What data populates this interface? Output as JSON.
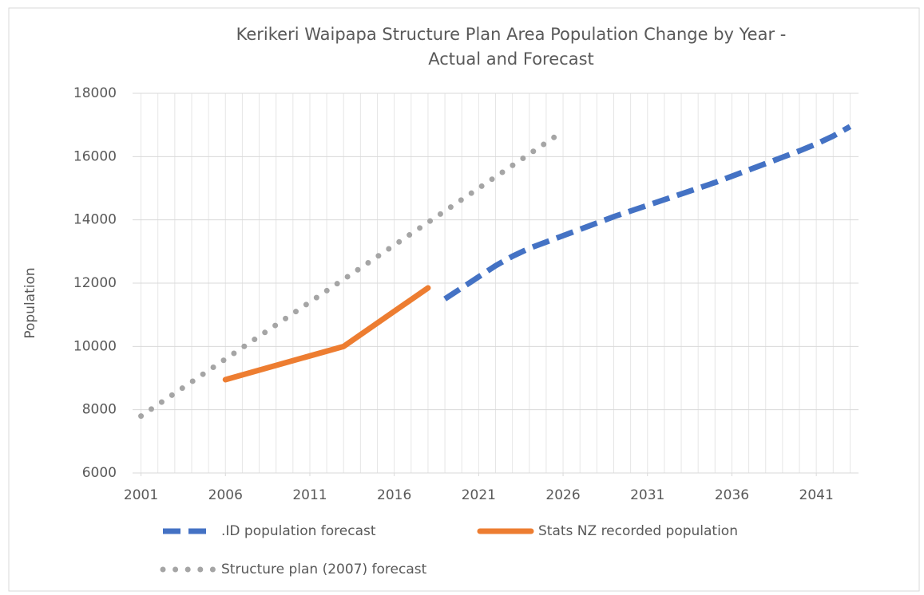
{
  "chart_data": {
    "type": "line",
    "title": [
      "Kerikeri Waipapa Structure Plan Area Population Change by Year  -",
      "Actual and Forecast"
    ],
    "y_label": "Population",
    "xlim": [
      2000.5,
      2043.5
    ],
    "xticks": [
      2001,
      2006,
      2011,
      2016,
      2021,
      2026,
      2031,
      2036,
      2041
    ],
    "ylim": [
      6000,
      18000
    ],
    "yticks": [
      6000,
      8000,
      10000,
      12000,
      14000,
      16000,
      18000
    ],
    "grid": true,
    "legend": "bottom",
    "series": [
      {
        "name": ".ID population forecast",
        "color": "#4472c4",
        "style": "dashed",
        "x": [
          2019,
          2020,
          2021,
          2022,
          2023,
          2024,
          2025,
          2026,
          2027,
          2028,
          2029,
          2030,
          2031,
          2032,
          2033,
          2034,
          2035,
          2036,
          2037,
          2038,
          2039,
          2040,
          2041,
          2042,
          2043
        ],
        "values": [
          11500,
          11850,
          12200,
          12550,
          12850,
          13100,
          13300,
          13500,
          13700,
          13900,
          14100,
          14280,
          14460,
          14640,
          14820,
          15000,
          15180,
          15380,
          15580,
          15780,
          15980,
          16180,
          16400,
          16650,
          16950
        ]
      },
      {
        "name": "Stats NZ recorded population",
        "color": "#ed7d31",
        "style": "solid",
        "x": [
          2006,
          2013,
          2018
        ],
        "values": [
          8950,
          10000,
          11850
        ]
      },
      {
        "name": "Structure plan (2007) forecast",
        "color": "#a5a5a5",
        "style": "dotted",
        "x": [
          2001,
          2002,
          2003,
          2004,
          2005,
          2006,
          2007,
          2008,
          2009,
          2010,
          2011,
          2012,
          2013,
          2014,
          2015,
          2016,
          2017,
          2018,
          2019,
          2020,
          2021,
          2022,
          2023,
          2024,
          2025,
          2026
        ],
        "values": [
          7800,
          8160,
          8520,
          8880,
          9240,
          9600,
          9960,
          10320,
          10680,
          11040,
          11400,
          11760,
          12120,
          12480,
          12840,
          13200,
          13560,
          13920,
          14280,
          14640,
          15000,
          15360,
          15720,
          16080,
          16440,
          16800
        ]
      }
    ]
  }
}
